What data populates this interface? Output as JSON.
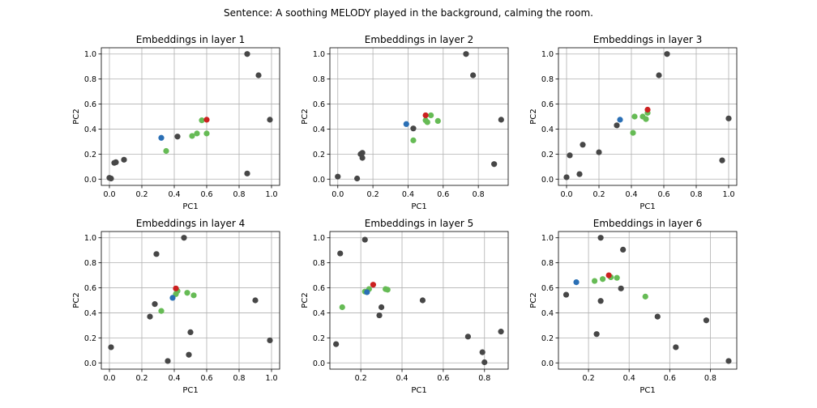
{
  "chart_title": "Sentence: A soothing MELODY played in the background, calming the room.",
  "colors": {
    "other": "#474747",
    "context": "#66bb55",
    "target": "#cc2020",
    "anchor": "#2a6fb5"
  },
  "chart_data": [
    {
      "type": "scatter",
      "title": "Embeddings in layer 1",
      "xlabel": "PC1",
      "ylabel": "PC2",
      "xlim": [
        -0.05,
        1.05
      ],
      "ylim": [
        -0.05,
        1.05
      ],
      "xticks": [
        "0.0",
        "0.2",
        "0.4",
        "0.6",
        "0.8",
        "1.0"
      ],
      "yticks": [
        "0.0",
        "0.2",
        "0.4",
        "0.6",
        "0.8",
        "1.0"
      ],
      "grid": true,
      "points": [
        {
          "x": 0.0,
          "y": 0.01,
          "g": "other"
        },
        {
          "x": 0.01,
          "y": 0.005,
          "g": "other"
        },
        {
          "x": 0.03,
          "y": 0.13,
          "g": "other"
        },
        {
          "x": 0.04,
          "y": 0.135,
          "g": "other"
        },
        {
          "x": 0.09,
          "y": 0.155,
          "g": "other"
        },
        {
          "x": 0.42,
          "y": 0.34,
          "g": "other"
        },
        {
          "x": 0.85,
          "y": 1.0,
          "g": "other"
        },
        {
          "x": 0.92,
          "y": 0.83,
          "g": "other"
        },
        {
          "x": 0.99,
          "y": 0.475,
          "g": "other"
        },
        {
          "x": 0.85,
          "y": 0.045,
          "g": "other"
        },
        {
          "x": 0.35,
          "y": 0.225,
          "g": "context"
        },
        {
          "x": 0.51,
          "y": 0.345,
          "g": "context"
        },
        {
          "x": 0.54,
          "y": 0.365,
          "g": "context"
        },
        {
          "x": 0.57,
          "y": 0.47,
          "g": "context"
        },
        {
          "x": 0.6,
          "y": 0.365,
          "g": "context"
        },
        {
          "x": 0.32,
          "y": 0.33,
          "g": "anchor"
        },
        {
          "x": 0.6,
          "y": 0.475,
          "g": "target"
        }
      ]
    },
    {
      "type": "scatter",
      "title": "Embeddings in layer 2",
      "xlabel": "PC1",
      "ylabel": "PC2",
      "xlim": [
        -0.045,
        0.97
      ],
      "ylim": [
        -0.05,
        1.05
      ],
      "xticks": [
        "0.0",
        "0.2",
        "0.4",
        "0.6",
        "0.8"
      ],
      "yticks": [
        "0.0",
        "0.2",
        "0.4",
        "0.6",
        "0.8",
        "1.0"
      ],
      "grid": true,
      "points": [
        {
          "x": 0.0,
          "y": 0.02,
          "g": "other"
        },
        {
          "x": 0.11,
          "y": 0.005,
          "g": "other"
        },
        {
          "x": 0.13,
          "y": 0.2,
          "g": "other"
        },
        {
          "x": 0.14,
          "y": 0.21,
          "g": "other"
        },
        {
          "x": 0.14,
          "y": 0.17,
          "g": "other"
        },
        {
          "x": 0.43,
          "y": 0.405,
          "g": "other"
        },
        {
          "x": 0.73,
          "y": 1.0,
          "g": "other"
        },
        {
          "x": 0.77,
          "y": 0.83,
          "g": "other"
        },
        {
          "x": 0.93,
          "y": 0.475,
          "g": "other"
        },
        {
          "x": 0.89,
          "y": 0.12,
          "g": "other"
        },
        {
          "x": 0.43,
          "y": 0.31,
          "g": "context"
        },
        {
          "x": 0.5,
          "y": 0.47,
          "g": "context"
        },
        {
          "x": 0.51,
          "y": 0.455,
          "g": "context"
        },
        {
          "x": 0.53,
          "y": 0.51,
          "g": "context"
        },
        {
          "x": 0.57,
          "y": 0.465,
          "g": "context"
        },
        {
          "x": 0.39,
          "y": 0.44,
          "g": "anchor"
        },
        {
          "x": 0.5,
          "y": 0.51,
          "g": "target"
        }
      ]
    },
    {
      "type": "scatter",
      "title": "Embeddings in layer 3",
      "xlabel": "PC1",
      "ylabel": "PC2",
      "xlim": [
        -0.05,
        1.05
      ],
      "ylim": [
        -0.05,
        1.05
      ],
      "xticks": [
        "0.0",
        "0.2",
        "0.4",
        "0.6",
        "0.8",
        "1.0"
      ],
      "yticks": [
        "0.0",
        "0.2",
        "0.4",
        "0.6",
        "0.8",
        "1.0"
      ],
      "grid": true,
      "points": [
        {
          "x": 0.0,
          "y": 0.015,
          "g": "other"
        },
        {
          "x": 0.02,
          "y": 0.19,
          "g": "other"
        },
        {
          "x": 0.08,
          "y": 0.04,
          "g": "other"
        },
        {
          "x": 0.1,
          "y": 0.275,
          "g": "other"
        },
        {
          "x": 0.2,
          "y": 0.215,
          "g": "other"
        },
        {
          "x": 0.31,
          "y": 0.43,
          "g": "other"
        },
        {
          "x": 0.62,
          "y": 1.0,
          "g": "other"
        },
        {
          "x": 0.57,
          "y": 0.83,
          "g": "other"
        },
        {
          "x": 0.96,
          "y": 0.15,
          "g": "other"
        },
        {
          "x": 1.0,
          "y": 0.485,
          "g": "other"
        },
        {
          "x": 0.41,
          "y": 0.37,
          "g": "context"
        },
        {
          "x": 0.42,
          "y": 0.5,
          "g": "context"
        },
        {
          "x": 0.47,
          "y": 0.5,
          "g": "context"
        },
        {
          "x": 0.49,
          "y": 0.48,
          "g": "context"
        },
        {
          "x": 0.5,
          "y": 0.53,
          "g": "context"
        },
        {
          "x": 0.33,
          "y": 0.475,
          "g": "anchor"
        },
        {
          "x": 0.5,
          "y": 0.555,
          "g": "target"
        }
      ]
    },
    {
      "type": "scatter",
      "title": "Embeddings in layer 4",
      "xlabel": "PC1",
      "ylabel": "PC2",
      "xlim": [
        -0.05,
        1.05
      ],
      "ylim": [
        -0.05,
        1.05
      ],
      "xticks": [
        "0.0",
        "0.2",
        "0.4",
        "0.6",
        "0.8",
        "1.0"
      ],
      "yticks": [
        "0.0",
        "0.2",
        "0.4",
        "0.6",
        "0.8",
        "1.0"
      ],
      "grid": true,
      "points": [
        {
          "x": 0.01,
          "y": 0.125,
          "g": "other"
        },
        {
          "x": 0.25,
          "y": 0.37,
          "g": "other"
        },
        {
          "x": 0.28,
          "y": 0.47,
          "g": "other"
        },
        {
          "x": 0.29,
          "y": 0.87,
          "g": "other"
        },
        {
          "x": 0.36,
          "y": 0.015,
          "g": "other"
        },
        {
          "x": 0.46,
          "y": 1.0,
          "g": "other"
        },
        {
          "x": 0.49,
          "y": 0.065,
          "g": "other"
        },
        {
          "x": 0.5,
          "y": 0.245,
          "g": "other"
        },
        {
          "x": 0.9,
          "y": 0.5,
          "g": "other"
        },
        {
          "x": 0.99,
          "y": 0.18,
          "g": "other"
        },
        {
          "x": 0.32,
          "y": 0.415,
          "g": "context"
        },
        {
          "x": 0.41,
          "y": 0.55,
          "g": "context"
        },
        {
          "x": 0.42,
          "y": 0.575,
          "g": "context"
        },
        {
          "x": 0.48,
          "y": 0.56,
          "g": "context"
        },
        {
          "x": 0.52,
          "y": 0.54,
          "g": "context"
        },
        {
          "x": 0.39,
          "y": 0.52,
          "g": "anchor"
        },
        {
          "x": 0.41,
          "y": 0.595,
          "g": "target"
        }
      ]
    },
    {
      "type": "scatter",
      "title": "Embeddings in layer 5",
      "xlabel": "PC1",
      "ylabel": "PC2",
      "xlim": [
        0.05,
        0.915
      ],
      "ylim": [
        -0.05,
        1.05
      ],
      "xticks": [
        "0.2",
        "0.4",
        "0.6",
        "0.8"
      ],
      "yticks": [
        "0.0",
        "0.2",
        "0.4",
        "0.6",
        "0.8",
        "1.0"
      ],
      "grid": true,
      "points": [
        {
          "x": 0.08,
          "y": 0.15,
          "g": "other"
        },
        {
          "x": 0.1,
          "y": 0.875,
          "g": "other"
        },
        {
          "x": 0.22,
          "y": 0.985,
          "g": "other"
        },
        {
          "x": 0.29,
          "y": 0.38,
          "g": "other"
        },
        {
          "x": 0.3,
          "y": 0.445,
          "g": "other"
        },
        {
          "x": 0.5,
          "y": 0.5,
          "g": "other"
        },
        {
          "x": 0.72,
          "y": 0.21,
          "g": "other"
        },
        {
          "x": 0.79,
          "y": 0.085,
          "g": "other"
        },
        {
          "x": 0.8,
          "y": 0.005,
          "g": "other"
        },
        {
          "x": 0.88,
          "y": 0.25,
          "g": "other"
        },
        {
          "x": 0.11,
          "y": 0.445,
          "g": "context"
        },
        {
          "x": 0.22,
          "y": 0.57,
          "g": "context"
        },
        {
          "x": 0.24,
          "y": 0.59,
          "g": "context"
        },
        {
          "x": 0.32,
          "y": 0.59,
          "g": "context"
        },
        {
          "x": 0.33,
          "y": 0.585,
          "g": "context"
        },
        {
          "x": 0.23,
          "y": 0.565,
          "g": "anchor"
        },
        {
          "x": 0.26,
          "y": 0.625,
          "g": "target"
        }
      ]
    },
    {
      "type": "scatter",
      "title": "Embeddings in layer 6",
      "xlabel": "PC1",
      "ylabel": "PC2",
      "xlim": [
        0.052,
        0.93
      ],
      "ylim": [
        -0.05,
        1.05
      ],
      "xticks": [
        "0.2",
        "0.4",
        "0.6",
        "0.8"
      ],
      "yticks": [
        "0.0",
        "0.2",
        "0.4",
        "0.6",
        "0.8",
        "1.0"
      ],
      "grid": true,
      "points": [
        {
          "x": 0.09,
          "y": 0.545,
          "g": "other"
        },
        {
          "x": 0.24,
          "y": 0.23,
          "g": "other"
        },
        {
          "x": 0.26,
          "y": 0.495,
          "g": "other"
        },
        {
          "x": 0.26,
          "y": 1.0,
          "g": "other"
        },
        {
          "x": 0.36,
          "y": 0.595,
          "g": "other"
        },
        {
          "x": 0.37,
          "y": 0.905,
          "g": "other"
        },
        {
          "x": 0.54,
          "y": 0.37,
          "g": "other"
        },
        {
          "x": 0.63,
          "y": 0.125,
          "g": "other"
        },
        {
          "x": 0.78,
          "y": 0.34,
          "g": "other"
        },
        {
          "x": 0.89,
          "y": 0.015,
          "g": "other"
        },
        {
          "x": 0.23,
          "y": 0.655,
          "g": "context"
        },
        {
          "x": 0.27,
          "y": 0.67,
          "g": "context"
        },
        {
          "x": 0.31,
          "y": 0.685,
          "g": "context"
        },
        {
          "x": 0.34,
          "y": 0.68,
          "g": "context"
        },
        {
          "x": 0.48,
          "y": 0.53,
          "g": "context"
        },
        {
          "x": 0.14,
          "y": 0.645,
          "g": "anchor"
        },
        {
          "x": 0.3,
          "y": 0.7,
          "g": "target"
        }
      ]
    }
  ]
}
